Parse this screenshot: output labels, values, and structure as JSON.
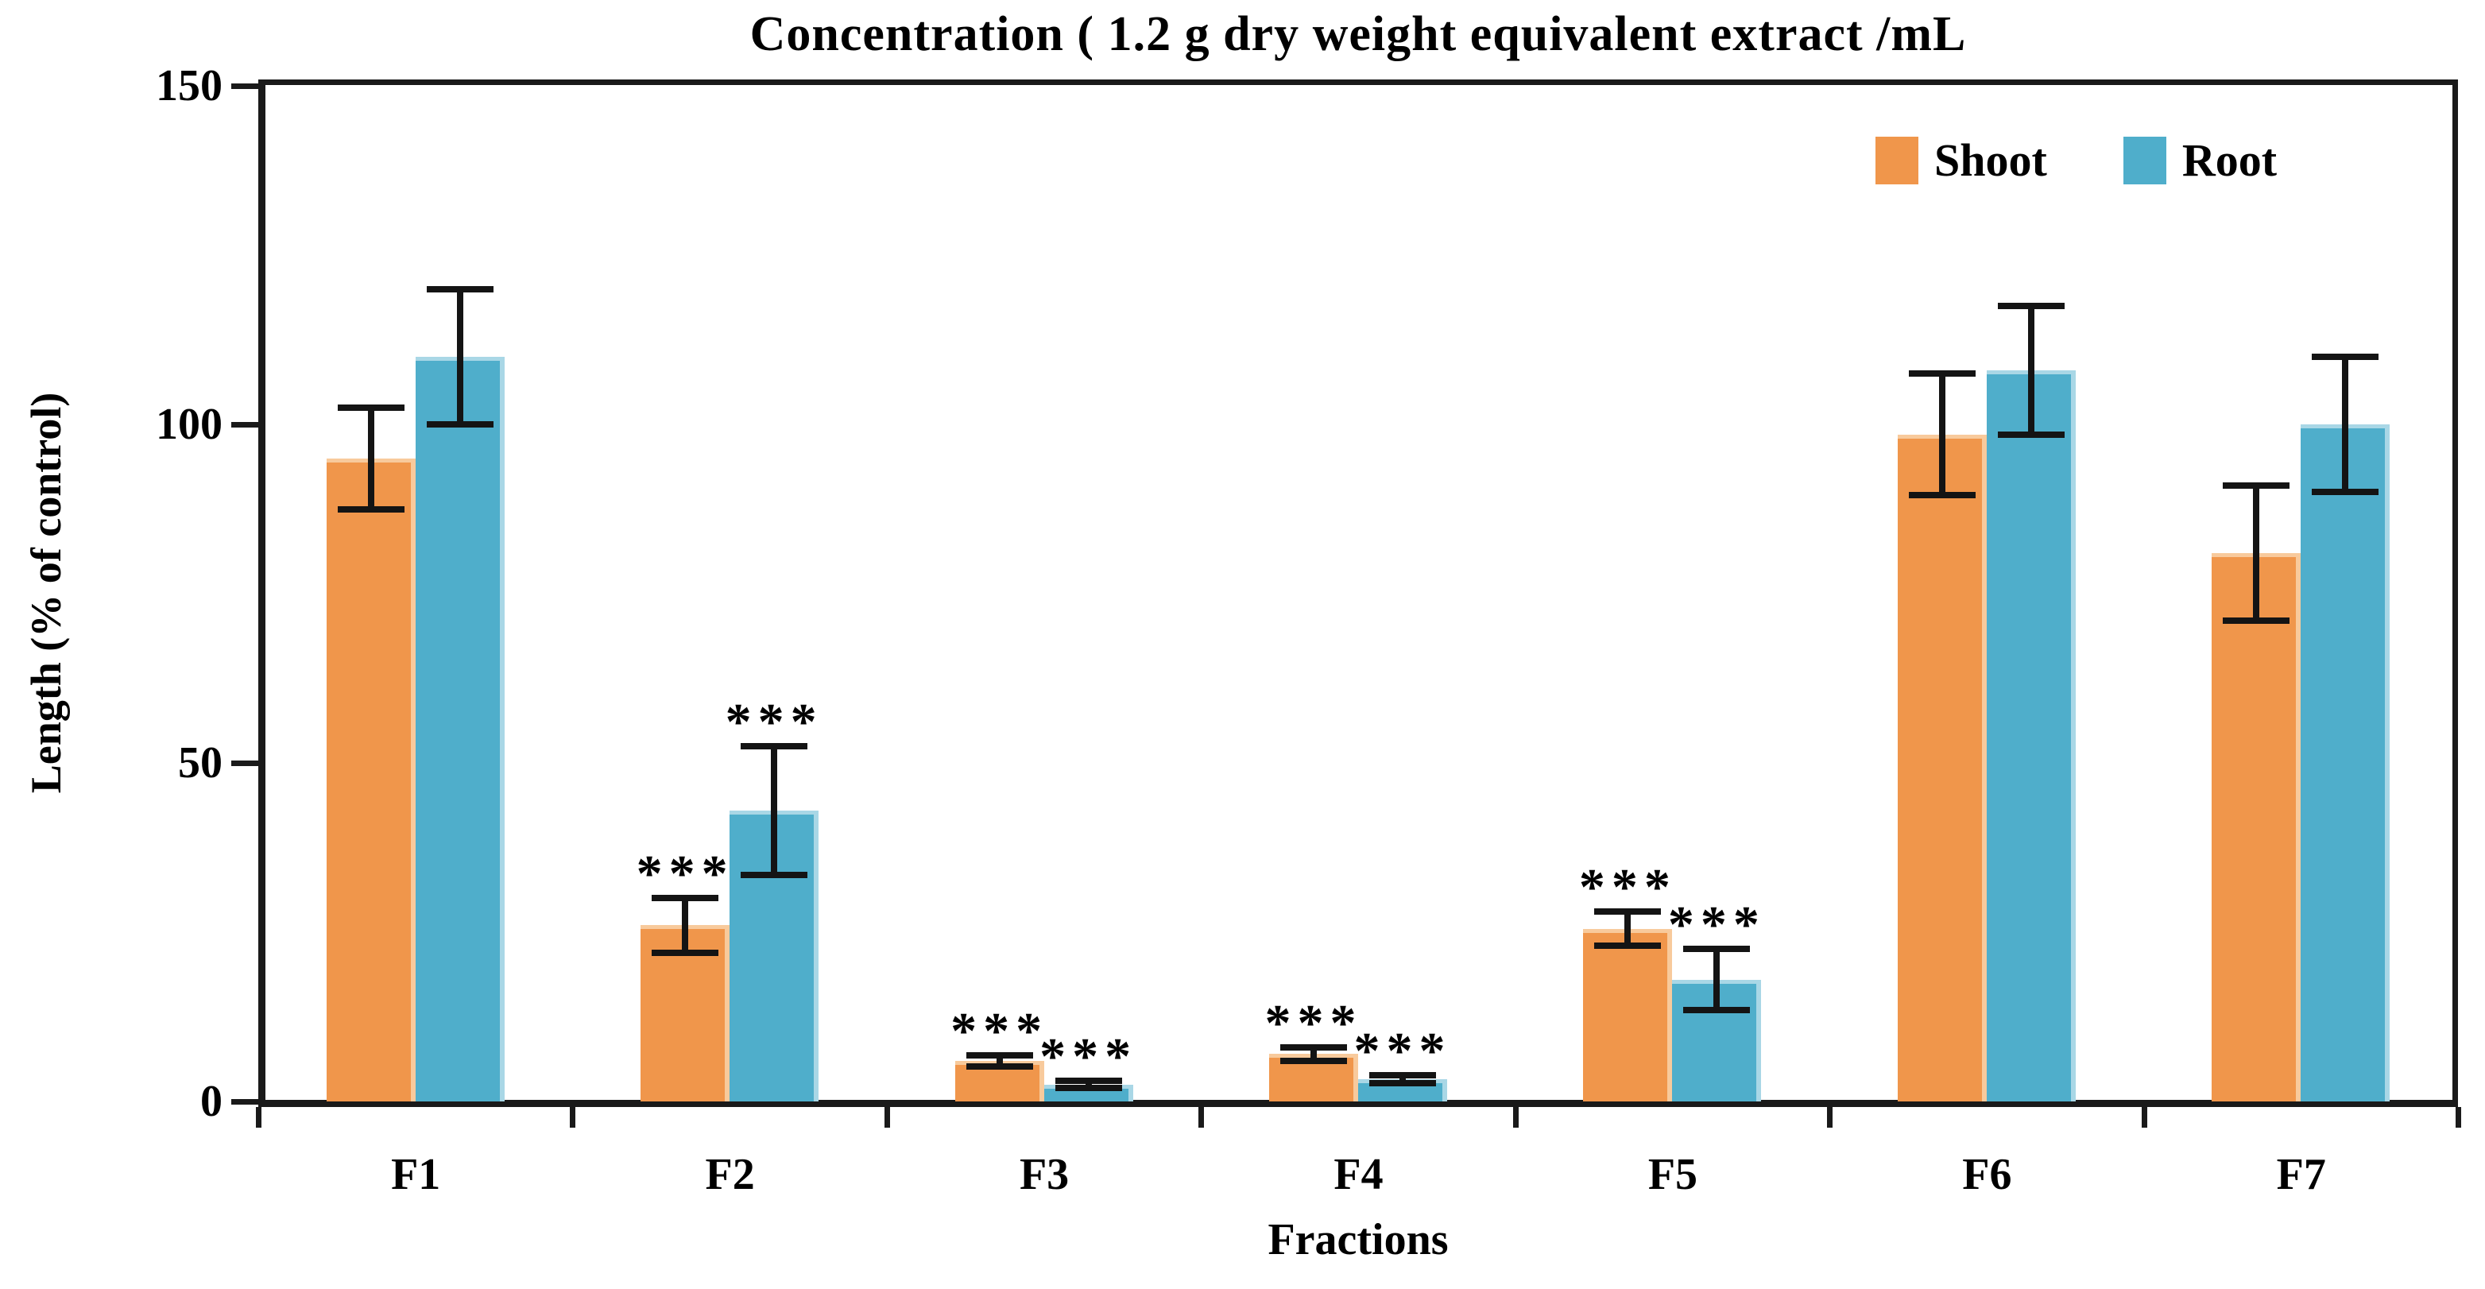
{
  "chart_data": {
    "type": "bar",
    "title": "Concentration ( 1.2 g dry weight equivalent extract /mL",
    "xlabel": "Fractions",
    "ylabel": "Length (% of control)",
    "categories": [
      "F1",
      "F2",
      "F3",
      "F4",
      "F5",
      "F6",
      "F7"
    ],
    "series": [
      {
        "name": "Shoot",
        "color": "#F0964B",
        "edge_color": "#F8CA9C",
        "values": [
          95,
          26,
          6,
          7,
          25.5,
          98.5,
          81
        ],
        "errors": [
          7.5,
          4,
          0.8,
          1,
          2.5,
          9,
          10
        ],
        "significance": [
          "",
          "***",
          "***",
          "***",
          "***",
          "",
          ""
        ]
      },
      {
        "name": "Root",
        "color": "#4FAECB",
        "edge_color": "#A9D7E6",
        "values": [
          110,
          43,
          2.5,
          3.3,
          18,
          108,
          100
        ],
        "errors": [
          10,
          9.5,
          0.5,
          0.6,
          4.5,
          9.5,
          10
        ],
        "significance": [
          "",
          "***",
          "***",
          "***",
          "***",
          "",
          ""
        ]
      }
    ],
    "ylim": [
      0,
      150
    ],
    "yticks": [
      0,
      50,
      100,
      150
    ],
    "error_bar_color": "#141414",
    "axis_color": "#1a1a1a",
    "legend_position": "top-right",
    "grid": false
  }
}
